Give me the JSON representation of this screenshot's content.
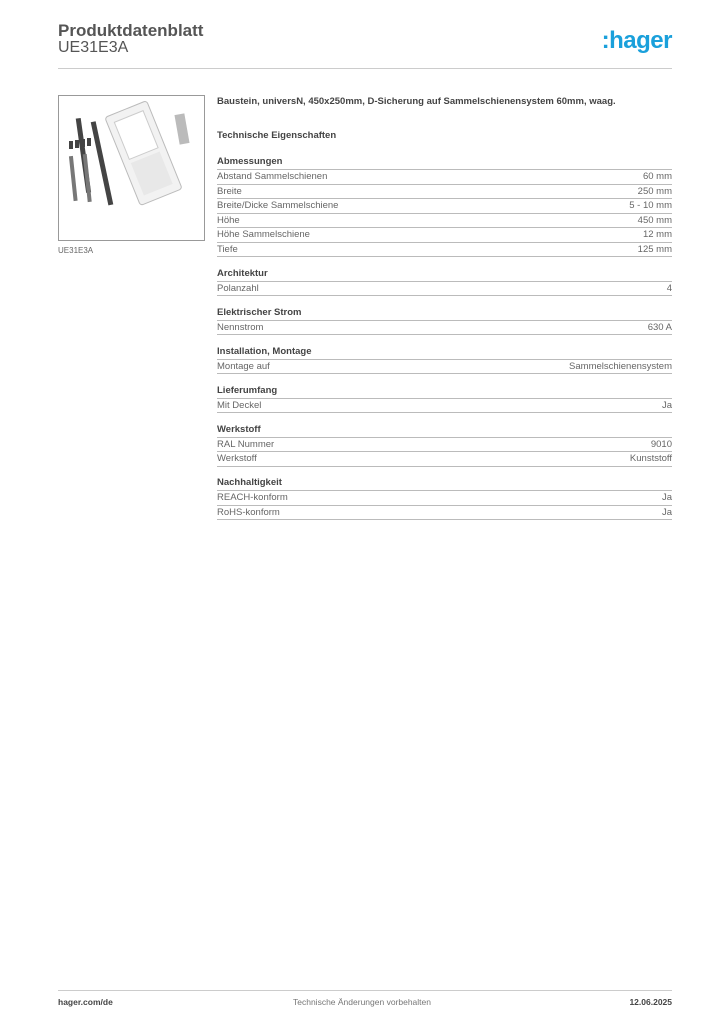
{
  "header": {
    "title": "Produktdatenblatt",
    "subtitle": "UE31E3A",
    "logo": ":hager"
  },
  "image": {
    "caption": "UE31E3A"
  },
  "description": "Baustein, universN, 450x250mm, D-Sicherung auf Sammelschienensystem 60mm, waag.",
  "tech_heading": "Technische Eigenschaften",
  "sections": [
    {
      "title": "Abmessungen",
      "rows": [
        [
          "Abstand Sammelschienen",
          "60 mm"
        ],
        [
          "Breite",
          "250 mm"
        ],
        [
          "Breite/Dicke Sammelschiene",
          "5 - 10 mm"
        ],
        [
          "Höhe",
          "450 mm"
        ],
        [
          "Höhe Sammelschiene",
          "12 mm"
        ],
        [
          "Tiefe",
          "125 mm"
        ]
      ]
    },
    {
      "title": "Architektur",
      "rows": [
        [
          "Polanzahl",
          "4"
        ]
      ]
    },
    {
      "title": "Elektrischer Strom",
      "rows": [
        [
          "Nennstrom",
          "630 A"
        ]
      ]
    },
    {
      "title": "Installation, Montage",
      "rows": [
        [
          "Montage auf",
          "Sammelschienensystem"
        ]
      ]
    },
    {
      "title": "Lieferumfang",
      "rows": [
        [
          "Mit Deckel",
          "Ja"
        ]
      ]
    },
    {
      "title": "Werkstoff",
      "rows": [
        [
          "RAL Nummer",
          "9010"
        ],
        [
          "Werkstoff",
          "Kunststoff"
        ]
      ]
    },
    {
      "title": "Nachhaltigkeit",
      "rows": [
        [
          "REACH-konform",
          "Ja"
        ],
        [
          "RoHS-konform",
          "Ja"
        ]
      ]
    }
  ],
  "footer": {
    "left": "hager.com/de",
    "center": "Technische Änderungen vorbehalten",
    "right": "12.06.2025"
  },
  "colors": {
    "brand": "#1aa0db"
  }
}
